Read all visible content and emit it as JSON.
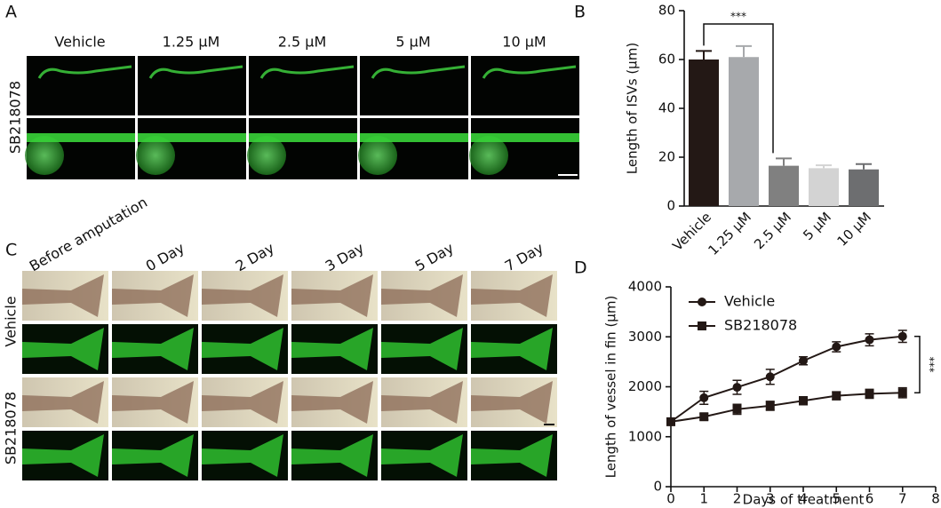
{
  "panel_labels": [
    "A",
    "B",
    "C",
    "D"
  ],
  "panel_a": {
    "columns": [
      "Vehicle",
      "1.25 μM",
      "2.5 μM",
      "5 μM",
      "10 μM"
    ],
    "row_label": "SB218078"
  },
  "panel_c": {
    "columns": [
      "Before amputation",
      "0 Day",
      "2 Day",
      "3 Day",
      "5 Day",
      "7 Day"
    ],
    "row_labels": [
      "Vehicle",
      "SB218078"
    ]
  },
  "chart_data": [
    {
      "type": "bar",
      "ylabel": "Length of ISVs (μm)",
      "categories": [
        "Vehicle",
        "1.25 μM",
        "2.5 μM",
        "5 μM",
        "10 μM"
      ],
      "values": [
        60,
        61,
        16.5,
        15.5,
        15
      ],
      "errors": [
        3.5,
        4.5,
        3,
        1.2,
        2.2
      ],
      "colors": [
        "#231815",
        "#a7a9ac",
        "#808080",
        "#d3d3d3",
        "#6d6e70"
      ],
      "ylim": [
        0,
        80
      ],
      "yticks": [
        0,
        20,
        40,
        60,
        80
      ],
      "annotation": "***"
    },
    {
      "type": "line",
      "xlabel": "Days of treatment",
      "ylabel": "Length of vessel in fin (μm)",
      "x": [
        0,
        1,
        2,
        3,
        4,
        5,
        6,
        7
      ],
      "series": [
        {
          "name": "Vehicle",
          "color": "#231815",
          "marker": "circle",
          "values": [
            1300,
            1780,
            1990,
            2200,
            2520,
            2800,
            2940,
            3010
          ],
          "errors": [
            60,
            130,
            140,
            150,
            80,
            100,
            120,
            120
          ]
        },
        {
          "name": "SB218078",
          "color": "#231815",
          "marker": "square",
          "values": [
            1300,
            1400,
            1550,
            1620,
            1720,
            1820,
            1860,
            1880
          ],
          "errors": [
            50,
            60,
            100,
            90,
            80,
            80,
            90,
            100
          ]
        }
      ],
      "xlim": [
        0,
        8
      ],
      "xticks": [
        0,
        1,
        2,
        3,
        4,
        5,
        6,
        7,
        8
      ],
      "ylim": [
        0,
        4000
      ],
      "yticks": [
        0,
        1000,
        2000,
        3000,
        4000
      ],
      "legend": "upper left",
      "annotation": "***"
    }
  ]
}
